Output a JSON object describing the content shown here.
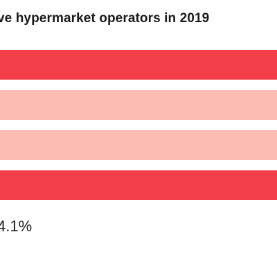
{
  "chart_data": {
    "type": "bar",
    "title": "ve hypermarket operators in 2019",
    "categories": [
      "",
      "",
      "",
      ""
    ],
    "series": [
      {
        "values": [
          null,
          null,
          null,
          null
        ],
        "colors": [
          "#f23e48",
          "#fcbcb3",
          "#fcbcb3",
          "#f23e48"
        ]
      }
    ],
    "data_labels": [
      "4.1%"
    ],
    "xlabel": "",
    "ylabel": "",
    "grid": false
  }
}
